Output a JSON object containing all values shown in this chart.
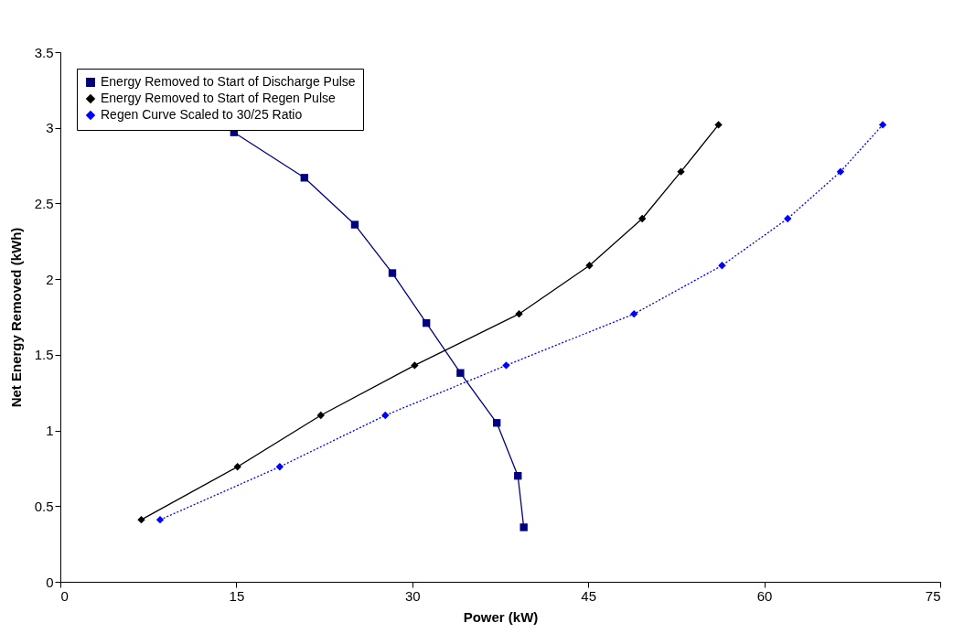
{
  "chart_data": {
    "type": "line",
    "xlabel": "Power (kW)",
    "ylabel": "Net Energy Removed (kWh)",
    "xlim": [
      0,
      75
    ],
    "xticks": [
      0,
      15,
      30,
      45,
      60,
      75
    ],
    "ylim": [
      0,
      3.5
    ],
    "yticks": [
      0,
      0.5,
      1,
      1.5,
      2,
      2.5,
      3,
      3.5
    ],
    "grid": false,
    "legend": "top left",
    "series": [
      {
        "name": "Energy Removed to Start of Discharge Pulse",
        "color": "#000080",
        "marker": "square",
        "line_style": "solid",
        "x": [
          14.8,
          20.8,
          25.1,
          28.3,
          31.2,
          34.1,
          37.2,
          39.0,
          39.5
        ],
        "values": [
          2.97,
          2.67,
          2.36,
          2.04,
          1.71,
          1.38,
          1.05,
          0.7,
          0.36
        ]
      },
      {
        "name": "Energy Removed to Start of Regen Pulse",
        "color": "#000000",
        "marker": "diamond",
        "line_style": "solid",
        "x": [
          6.9,
          15.1,
          22.2,
          30.2,
          39.1,
          45.1,
          49.6,
          52.9,
          56.1
        ],
        "values": [
          0.41,
          0.76,
          1.1,
          1.43,
          1.77,
          2.09,
          2.4,
          2.71,
          3.02
        ]
      },
      {
        "name": "Regen Curve Scaled to 30/25 Ratio",
        "color": "#0000ff",
        "marker": "diamond",
        "line_style": "dotted",
        "x": [
          8.5,
          18.7,
          27.7,
          38.0,
          48.9,
          56.4,
          62.0,
          66.5,
          70.1
        ],
        "values": [
          0.41,
          0.76,
          1.1,
          1.43,
          1.77,
          2.09,
          2.4,
          2.71,
          3.02
        ]
      }
    ]
  }
}
